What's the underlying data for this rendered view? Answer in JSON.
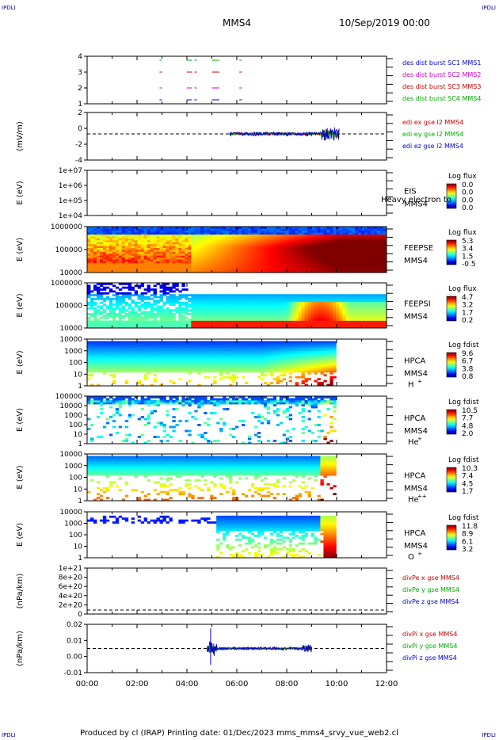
{
  "corners": {
    "tl": "IPDLI",
    "tr": "IPDLI",
    "bl": "IPDLI",
    "br": "IPDLI"
  },
  "header": {
    "spacecraft": "MMS4",
    "date": "10/Sep/2019 00:00"
  },
  "footer": {
    "text": "Produced by cl (IRAP)   Printing date: 01/Dec/2023   mms_mms4_srvy_vue_web2.cl"
  },
  "chart_data": {
    "type": "heatmap",
    "x": {
      "ticks": [
        "00:00",
        "02:00",
        "04:00",
        "06:00",
        "08:00",
        "10:00",
        "12:00"
      ],
      "range_hours": [
        0,
        12
      ]
    },
    "panels": [
      {
        "id": "burst",
        "type": "line",
        "ylabel": "",
        "yticks": [
          "4",
          "3",
          "2",
          "1"
        ],
        "legend": [
          {
            "text": "des dist burst SC1 MMS1",
            "color": "#0000cc"
          },
          {
            "text": "des dist burst SC2 MMS2",
            "color": "#cc00cc"
          },
          {
            "text": "des dist burst SC3 MMS3",
            "color": "#cc0000"
          },
          {
            "text": "des dist burst SC4 MMS4",
            "color": "#00aa00"
          }
        ]
      },
      {
        "id": "edi",
        "type": "line",
        "ylabel": "(mV/m)",
        "yticks": [
          "2",
          "0",
          "-2",
          "-4"
        ],
        "legend": [
          {
            "text": "edi ex gse l2 MMS4",
            "color": "#cc0000"
          },
          {
            "text": "edi ey gse l2 MMS4",
            "color": "#00aa00"
          },
          {
            "text": "edi ez gse l2 MMS4",
            "color": "#0000cc"
          }
        ]
      },
      {
        "id": "eis",
        "type": "heatmap",
        "ylabel": "E (eV)",
        "yticks": [
          "1e+07",
          "1e+06",
          "1e+05",
          "1e+04"
        ],
        "inst": "EIS",
        "sc": "MMS4",
        "overlay": "Heavy electron to",
        "cb_title": "Log flux",
        "cb_ticks": [
          "0.0",
          "0.0",
          "0.0",
          "0.0"
        ]
      },
      {
        "id": "feepse",
        "type": "heatmap",
        "ylabel": "E (eV)",
        "yticks": [
          "1000000",
          "100000",
          "10000"
        ],
        "inst": "FEEPSE",
        "sc": "MMS4",
        "cb_title": "Log flux",
        "cb_ticks": [
          "5.3",
          "3.4",
          "1.5",
          "-0.5"
        ]
      },
      {
        "id": "feepsi",
        "type": "heatmap",
        "ylabel": "E (eV)",
        "yticks": [
          "1000000",
          "100000",
          "10000"
        ],
        "inst": "FEEPSI",
        "sc": "MMS4",
        "cb_title": "Log flux",
        "cb_ticks": [
          "4.7",
          "3.2",
          "1.7",
          "0.2"
        ]
      },
      {
        "id": "hpca_h",
        "type": "heatmap",
        "ylabel": "E (eV)",
        "yticks": [
          "10000",
          "1000",
          "100",
          "10",
          "1"
        ],
        "inst": "HPCA",
        "sc": "MMS4",
        "species": "H",
        "charge": "+",
        "cb_title": "Log fdist",
        "cb_ticks": [
          "9.6",
          "6.7",
          "3.8",
          "0.8"
        ]
      },
      {
        "id": "hpca_he1",
        "type": "heatmap",
        "ylabel": "E (eV)",
        "yticks": [
          "100000",
          "10000",
          "1000",
          "100",
          "10",
          "1"
        ],
        "inst": "HPCA",
        "sc": "MMS4",
        "species": "He",
        "charge": "+",
        "cb_title": "Log fdist",
        "cb_ticks": [
          "10.5",
          "7.7",
          "4.8",
          "2.0"
        ]
      },
      {
        "id": "hpca_he2",
        "type": "heatmap",
        "ylabel": "E (eV)",
        "yticks": [
          "10000",
          "1000",
          "100",
          "10",
          "1"
        ],
        "inst": "HPCA",
        "sc": "MMS4",
        "species": "He",
        "charge": "++",
        "cb_title": "Log fdist",
        "cb_ticks": [
          "10.3",
          "7.4",
          "4.5",
          "1.7"
        ]
      },
      {
        "id": "hpca_o",
        "type": "heatmap",
        "ylabel": "E (eV)",
        "yticks": [
          "10000",
          "1000",
          "100",
          "10",
          "1"
        ],
        "inst": "HPCA",
        "sc": "MMS4",
        "species": "O",
        "charge": "+",
        "cb_title": "Log fdist",
        "cb_ticks": [
          "11.8",
          "8.9",
          "6.1",
          "3.2"
        ]
      },
      {
        "id": "divpe",
        "type": "line",
        "ylabel": "(nPa/km)",
        "yticks": [
          "1e+21",
          "8e+20",
          "6e+20",
          "4e+20",
          "2e+20",
          "0"
        ],
        "legend": [
          {
            "text": "divPe x gse MMS4",
            "color": "#cc0000"
          },
          {
            "text": "divPe y gse MMS4",
            "color": "#00aa00"
          },
          {
            "text": "divPe z gse MMS4",
            "color": "#0000cc"
          }
        ]
      },
      {
        "id": "divpi",
        "type": "line",
        "ylabel": "(nPa/km)",
        "yticks": [
          "0.02",
          "0.01",
          "0.00",
          "-0.01"
        ],
        "legend": [
          {
            "text": "divPi x gse MMS4",
            "color": "#cc0000"
          },
          {
            "text": "divPi y gse MMS4",
            "color": "#00aa00"
          },
          {
            "text": "divPi z gse MMS4",
            "color": "#0000cc"
          }
        ]
      }
    ]
  }
}
